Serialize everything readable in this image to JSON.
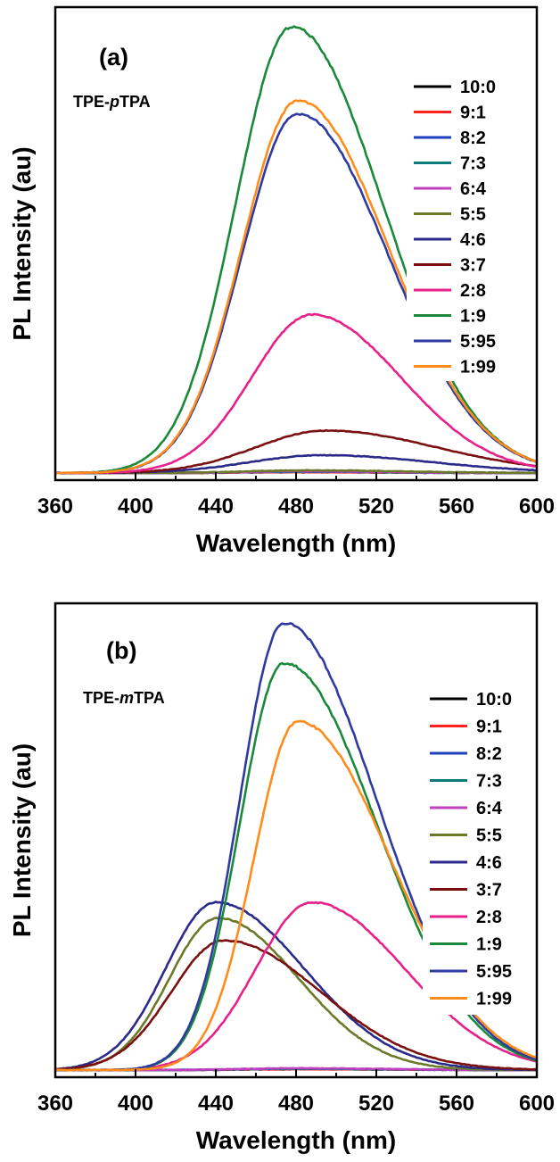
{
  "chart_data": [
    {
      "type": "line",
      "panel_label": "(a)",
      "compound": {
        "prefix": "TPE-",
        "italic": "p",
        "suffix": "TPA"
      },
      "xlabel": "Wavelength (nm)",
      "ylabel": "PL Intensity (au)",
      "xlim": [
        360,
        600
      ],
      "ylim": [
        0,
        1000
      ],
      "xticks": [
        "360",
        "400",
        "440",
        "480",
        "520",
        "560",
        "600"
      ],
      "grid": false,
      "legend_position": "top-right",
      "series": [
        {
          "name": "10:0",
          "color": "#000000",
          "peak": 2,
          "center": 480,
          "width_left": 28,
          "width_right": 45
        },
        {
          "name": "9:1",
          "color": "#ff2020",
          "peak": 2,
          "center": 480,
          "width_left": 28,
          "width_right": 45
        },
        {
          "name": "8:2",
          "color": "#1f3fbf",
          "peak": 3,
          "center": 480,
          "width_left": 28,
          "width_right": 45
        },
        {
          "name": "7:3",
          "color": "#0a7a7a",
          "peak": 3,
          "center": 480,
          "width_left": 28,
          "width_right": 45
        },
        {
          "name": "6:4",
          "color": "#c040c0",
          "peak": 4,
          "center": 482,
          "width_left": 28,
          "width_right": 45
        },
        {
          "name": "5:5",
          "color": "#6b7a28",
          "peak": 6,
          "center": 485,
          "width_left": 30,
          "width_right": 48
        },
        {
          "name": "4:6",
          "color": "#2a2a8a",
          "peak": 40,
          "center": 493,
          "width_left": 36,
          "width_right": 55
        },
        {
          "name": "3:7",
          "color": "#7a1010",
          "peak": 95,
          "center": 495,
          "width_left": 35,
          "width_right": 55
        },
        {
          "name": "2:8",
          "color": "#e8208a",
          "peak": 355,
          "center": 488,
          "width_left": 30,
          "width_right": 44
        },
        {
          "name": "1:9",
          "color": "#1a8a3a",
          "peak": 1000,
          "center": 478,
          "width_left": 28,
          "width_right": 45
        },
        {
          "name": "5:95",
          "color": "#2e3aa0",
          "peak": 805,
          "center": 481,
          "width_left": 28,
          "width_right": 45
        },
        {
          "name": "1:99",
          "color": "#ff8c1a",
          "peak": 835,
          "center": 481,
          "width_left": 28,
          "width_right": 45
        }
      ]
    },
    {
      "type": "line",
      "panel_label": "(b)",
      "compound": {
        "prefix": "TPE-",
        "italic": "m",
        "suffix": "TPA"
      },
      "xlabel": "Wavelength (nm)",
      "ylabel": "PL Intensity (au)",
      "xlim": [
        360,
        600
      ],
      "ylim": [
        0,
        1000
      ],
      "xticks": [
        "360",
        "400",
        "440",
        "480",
        "520",
        "560",
        "600"
      ],
      "grid": false,
      "legend_position": "top-right",
      "series": [
        {
          "name": "10:0",
          "color": "#000000",
          "peak": 2,
          "center": 480,
          "width_left": 28,
          "width_right": 45
        },
        {
          "name": "9:1",
          "color": "#ff2020",
          "peak": 2,
          "center": 480,
          "width_left": 28,
          "width_right": 45
        },
        {
          "name": "8:2",
          "color": "#1f3fbf",
          "peak": 3,
          "center": 480,
          "width_left": 28,
          "width_right": 45
        },
        {
          "name": "7:3",
          "color": "#0a7a7a",
          "peak": 3,
          "center": 480,
          "width_left": 28,
          "width_right": 45
        },
        {
          "name": "6:4",
          "color": "#c040c0",
          "peak": 4,
          "center": 480,
          "width_left": 28,
          "width_right": 45
        },
        {
          "name": "5:5",
          "color": "#6b7a28",
          "peak": 340,
          "center": 441,
          "width_left": 24,
          "width_right": 40
        },
        {
          "name": "4:6",
          "color": "#2a2a8a",
          "peak": 375,
          "center": 440,
          "width_left": 25,
          "width_right": 44
        },
        {
          "name": "3:7",
          "color": "#7a1010",
          "peak": 290,
          "center": 444,
          "width_left": 26,
          "width_right": 48
        },
        {
          "name": "2:8",
          "color": "#e8208a",
          "peak": 375,
          "center": 488,
          "width_left": 28,
          "width_right": 46
        },
        {
          "name": "1:9",
          "color": "#1a8a3a",
          "peak": 910,
          "center": 474,
          "width_left": 22,
          "width_right": 46
        },
        {
          "name": "5:95",
          "color": "#2e3aa0",
          "peak": 1000,
          "center": 474,
          "width_left": 22,
          "width_right": 46
        },
        {
          "name": "1:99",
          "color": "#ff8c1a",
          "peak": 780,
          "center": 481,
          "width_left": 22,
          "width_right": 46
        }
      ]
    }
  ]
}
